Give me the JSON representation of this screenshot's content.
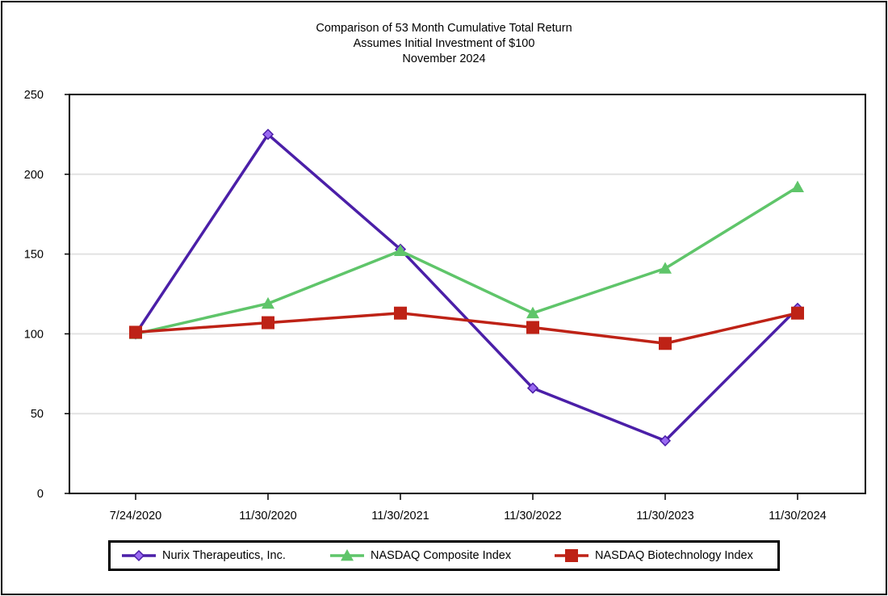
{
  "chart_data": {
    "type": "line",
    "title": "Comparison of 53 Month Cumulative Total Return",
    "subtitle": "Assumes Initial Investment of $100",
    "subtitle2": "November 2024",
    "categories": [
      "7/24/2020",
      "11/30/2020",
      "11/30/2021",
      "11/30/2022",
      "11/30/2023",
      "11/30/2024"
    ],
    "ylim": [
      0,
      250
    ],
    "yticks": [
      0,
      50,
      100,
      150,
      200,
      250
    ],
    "grid": true,
    "legend_position": "bottom",
    "series": [
      {
        "name": "Nurix Therapeutics, Inc.",
        "marker": "diamond",
        "color": "#4B1FA8",
        "fill": "#9A6AF2",
        "values": [
          100,
          225,
          153,
          66,
          33,
          116
        ]
      },
      {
        "name": "NASDAQ Composite Index",
        "marker": "triangle",
        "color": "#5FC56A",
        "fill": "#5FC56A",
        "values": [
          100,
          119,
          152,
          113,
          141,
          192
        ]
      },
      {
        "name": "NASDAQ Biotechnology Index",
        "marker": "square",
        "color": "#BE2216",
        "fill": "#BE2216",
        "values": [
          101,
          107,
          113,
          104,
          94,
          113
        ]
      }
    ]
  }
}
